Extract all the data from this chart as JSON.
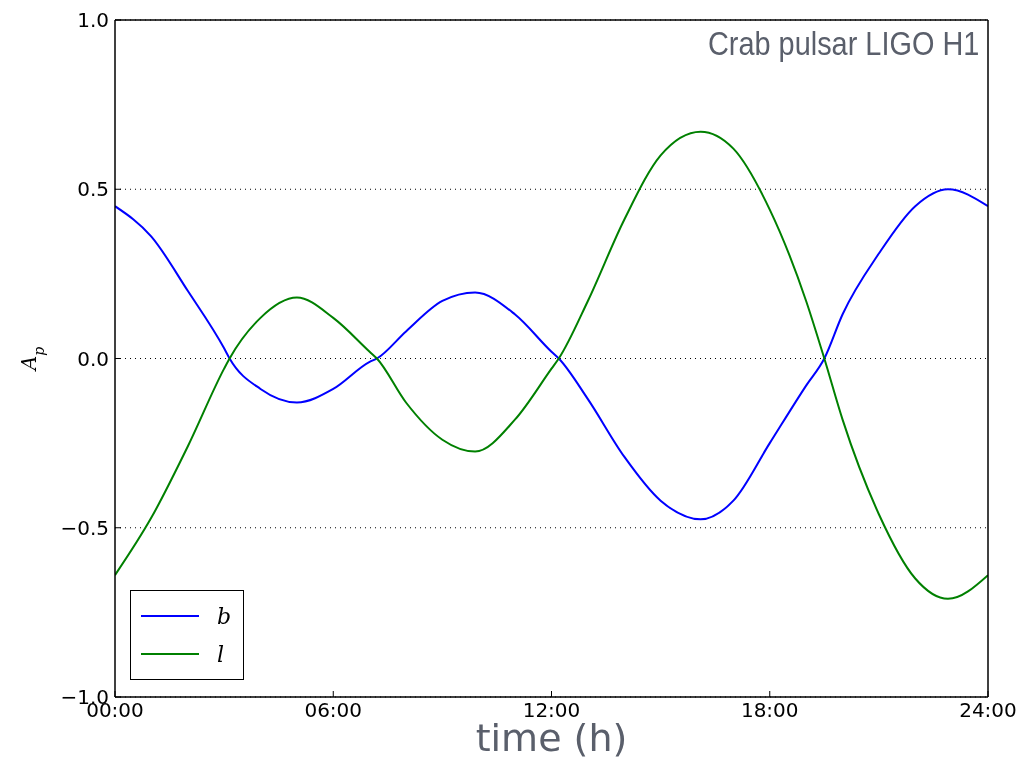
{
  "chart_data": {
    "type": "line",
    "title": "Crab pulsar LIGO H1",
    "xlabel": "time (h)",
    "ylabel": "A$_{p}$",
    "x": [
      0,
      1,
      2,
      3,
      3.15,
      4,
      5,
      6,
      7,
      7.2,
      8,
      9,
      9.9,
      11,
      12,
      12.2,
      13,
      14,
      15,
      16.1,
      17,
      18,
      19,
      19.5,
      20,
      21,
      22,
      22.9,
      24
    ],
    "series": [
      {
        "name": "b",
        "color": "#0000ff",
        "values": [
          0.45,
          0.36,
          0.2,
          0.03,
          0,
          -0.09,
          -0.13,
          -0.09,
          -0.01,
          0,
          0.08,
          0.17,
          0.195,
          0.13,
          0.02,
          0,
          -0.12,
          -0.29,
          -0.42,
          -0.475,
          -0.42,
          -0.25,
          -0.08,
          0,
          0.13,
          0.31,
          0.45,
          0.5,
          0.45
        ]
      },
      {
        "name": "l",
        "color": "#008000",
        "values": [
          -0.64,
          -0.47,
          -0.26,
          -0.03,
          0,
          0.12,
          0.18,
          0.12,
          0.02,
          0,
          -0.13,
          -0.24,
          -0.275,
          -0.18,
          -0.03,
          0,
          0.17,
          0.41,
          0.6,
          0.67,
          0.62,
          0.44,
          0.17,
          0,
          -0.18,
          -0.46,
          -0.65,
          -0.71,
          -0.64
        ]
      }
    ],
    "xlim": [
      0,
      24
    ],
    "xticks": [
      {
        "value": 0,
        "label": "00:00"
      },
      {
        "value": 6,
        "label": "06:00"
      },
      {
        "value": 12,
        "label": "12:00"
      },
      {
        "value": 18,
        "label": "18:00"
      },
      {
        "value": 24,
        "label": "24:00"
      }
    ],
    "ylim": [
      -1,
      1
    ],
    "yticks": [
      {
        "value": -1,
        "label": "−1.0"
      },
      {
        "value": -0.5,
        "label": "−0.5"
      },
      {
        "value": 0,
        "label": "0.0"
      },
      {
        "value": 0.5,
        "label": "0.5"
      },
      {
        "value": 1,
        "label": "1.0"
      }
    ],
    "grid": "y",
    "legend": "bottom left",
    "marker": "none",
    "line_style": "solid"
  }
}
